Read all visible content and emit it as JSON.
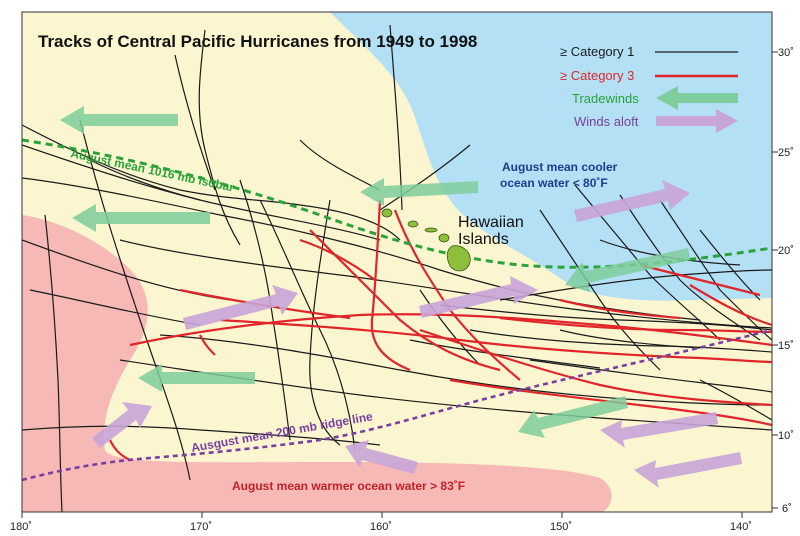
{
  "title": "Tracks of Central Pacific Hurricanes from 1949 to 1998",
  "legend": [
    {
      "label": "≥ Category 1",
      "color": "#1a1a1a",
      "kind": "track-cat1"
    },
    {
      "label": "≥ Category 3",
      "color": "#e0262b",
      "kind": "track-cat3"
    },
    {
      "label": "Tradewinds",
      "color": "#7fcc9c",
      "kind": "arrow-tradewinds"
    },
    {
      "label": "Winds aloft",
      "color": "#c9a4d8",
      "kind": "arrow-winds-aloft"
    }
  ],
  "annotations": {
    "isobar": "August mean 1016 mb isobar",
    "cool_water_line1": "August mean cooler",
    "cool_water_line2": "ocean water < 80˚F",
    "hawaii_line1": "Hawaiian",
    "hawaii_line2": "Islands",
    "ridge": "Ausgust mean 200 mb ridge line",
    "warm_water": "August mean warmer ocean water > 83˚F"
  },
  "axes": {
    "longitude_ticks": [
      "180˚",
      "170˚",
      "160˚",
      "150˚",
      "140˚"
    ],
    "latitude_ticks": [
      "30˚",
      "25˚",
      "20˚",
      "15˚",
      "10˚",
      "6˚"
    ]
  },
  "colors": {
    "land_bg": "#fbf6d0",
    "cool_water": "#b3e0f5",
    "warm_water": "#f6b9b5",
    "cat1": "#1a1a1a",
    "cat3": "#e0262b",
    "isobar": "#2aa33a",
    "ridge": "#7a3fa0",
    "tradewinds": "#7fcc9c",
    "winds_aloft": "#c9a4d8",
    "cool_text": "#1f3b8c",
    "warm_text": "#c4202a"
  }
}
